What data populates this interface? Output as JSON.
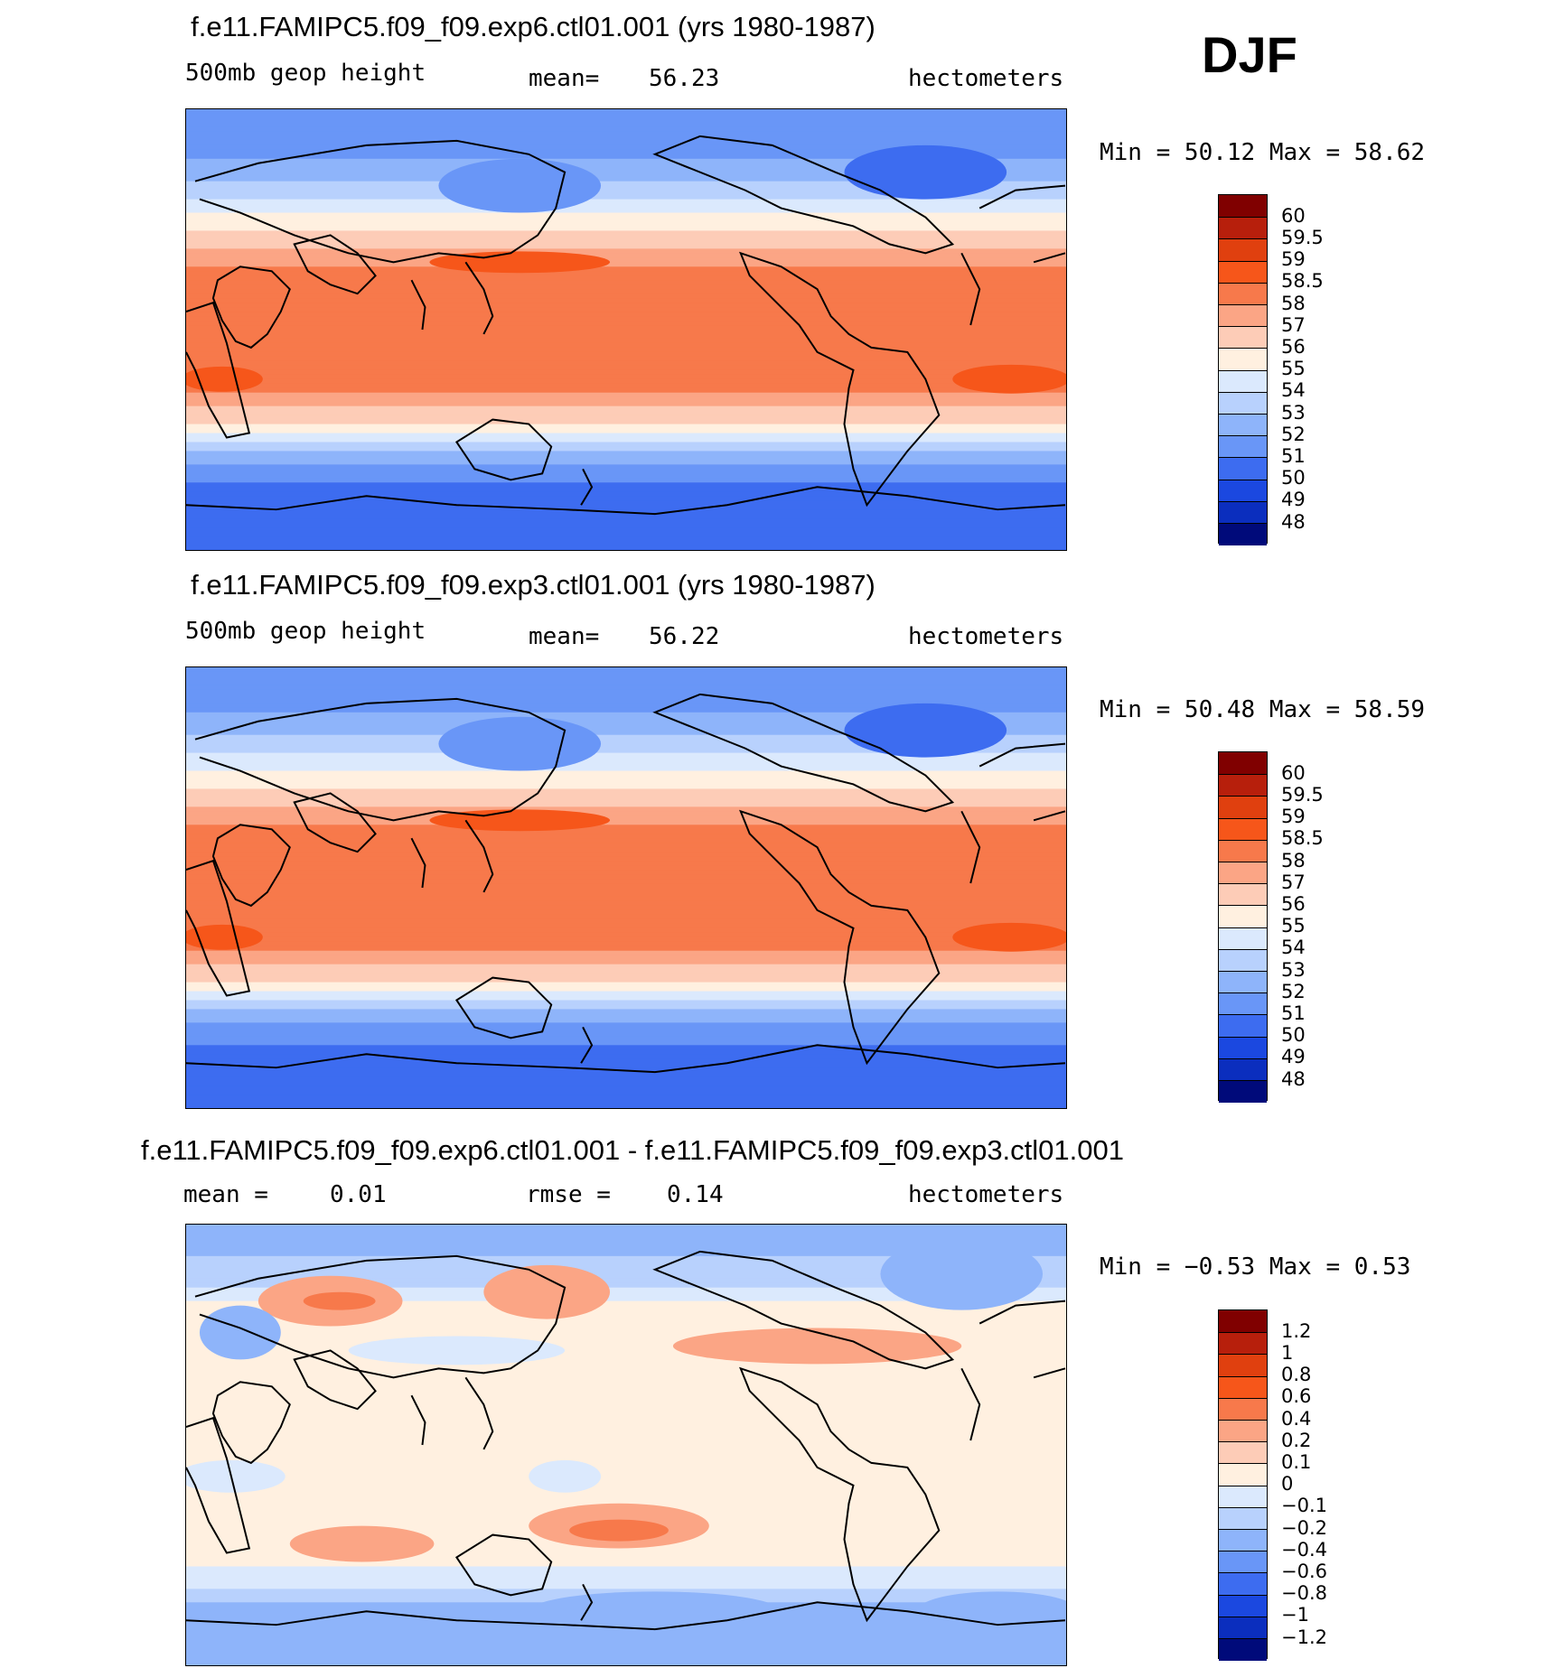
{
  "season_label": "DJF",
  "chart_data": [
    {
      "type": "heatmap",
      "title": "f.e11.FAMIPC5.f09_f09.exp6.ctl01.001 (yrs 1980-1987)",
      "variable": "500mb geop height",
      "mean_label": "mean=",
      "mean_value": "56.23",
      "units": "hectometers",
      "min_text": "Min =  50.12 Max =  58.62",
      "min": 50.12,
      "max": 58.62,
      "projection": "cylindrical equidistant, 180 centered, lat -90..90",
      "zonal_profile": {
        "lat": [
          90,
          75,
          65,
          55,
          48,
          40,
          33,
          25,
          15,
          0,
          -15,
          -25,
          -32,
          -38,
          -44,
          -50,
          -58,
          -68,
          -90
        ],
        "value": [
          51.0,
          51.5,
          52.5,
          53.8,
          55.0,
          56.0,
          57.0,
          58.2,
          58.4,
          58.3,
          58.3,
          58.0,
          57.0,
          56.0,
          54.5,
          53.0,
          51.5,
          50.5,
          50.3
        ]
      },
      "colorbar": {
        "labels": [
          "60",
          "59.5",
          "59",
          "58.5",
          "58",
          "57",
          "56",
          "55",
          "54",
          "53",
          "52",
          "51",
          "50",
          "49",
          "48"
        ],
        "colors": [
          "#800000",
          "#b71f0c",
          "#e0400f",
          "#f6561a",
          "#f7794b",
          "#fba585",
          "#fdccb7",
          "#fff0e0",
          "#dbe9fd",
          "#b8d1fd",
          "#8eb4fa",
          "#6996f7",
          "#3d6cf0",
          "#1b48e0",
          "#0b2ebe",
          "#000a7a"
        ]
      }
    },
    {
      "type": "heatmap",
      "title": "f.e11.FAMIPC5.f09_f09.exp3.ctl01.001 (yrs 1980-1987)",
      "variable": "500mb geop height",
      "mean_label": "mean=",
      "mean_value": "56.22",
      "units": "hectometers",
      "min_text": "Min =  50.48 Max =  58.59",
      "min": 50.48,
      "max": 58.59,
      "projection": "cylindrical equidistant, 180 centered, lat -90..90",
      "zonal_profile": {
        "lat": [
          90,
          75,
          65,
          55,
          48,
          40,
          33,
          25,
          15,
          0,
          -15,
          -25,
          -32,
          -38,
          -44,
          -50,
          -58,
          -68,
          -90
        ],
        "value": [
          51.1,
          51.6,
          52.6,
          53.9,
          55.1,
          56.1,
          57.1,
          58.2,
          58.4,
          58.3,
          58.3,
          58.0,
          57.0,
          56.0,
          54.5,
          53.0,
          51.6,
          50.7,
          50.5
        ]
      },
      "colorbar": {
        "labels": [
          "60",
          "59.5",
          "59",
          "58.5",
          "58",
          "57",
          "56",
          "55",
          "54",
          "53",
          "52",
          "51",
          "50",
          "49",
          "48"
        ],
        "colors": [
          "#800000",
          "#b71f0c",
          "#e0400f",
          "#f6561a",
          "#f7794b",
          "#fba585",
          "#fdccb7",
          "#fff0e0",
          "#dbe9fd",
          "#b8d1fd",
          "#8eb4fa",
          "#6996f7",
          "#3d6cf0",
          "#1b48e0",
          "#0b2ebe",
          "#000a7a"
        ]
      }
    },
    {
      "type": "heatmap",
      "title": "f.e11.FAMIPC5.f09_f09.exp6.ctl01.001 - f.e11.FAMIPC5.f09_f09.exp3.ctl01.001",
      "variable": "",
      "mean_label": "mean =",
      "mean_value": "0.01",
      "rmse_label": "rmse =",
      "rmse_value": "0.14",
      "units": "hectometers",
      "min_text": "Min = −0.53 Max =  0.53",
      "min": -0.53,
      "max": 0.53,
      "projection": "cylindrical equidistant, 180 centered, lat -90..90",
      "zonal_profile": {
        "lat": [
          90,
          78,
          65,
          55,
          45,
          30,
          10,
          -10,
          -30,
          -45,
          -55,
          -65,
          -90
        ],
        "value": [
          -0.3,
          -0.2,
          -0.1,
          0.05,
          0.02,
          0.01,
          0.01,
          0.01,
          0.02,
          0.05,
          -0.05,
          -0.2,
          -0.25
        ]
      },
      "colorbar": {
        "labels": [
          "1.2",
          "1",
          "0.8",
          "0.6",
          "0.4",
          "0.2",
          "0.1",
          "0",
          "−0.1",
          "−0.2",
          "−0.4",
          "−0.6",
          "−0.8",
          "−1",
          "−1.2"
        ],
        "colors": [
          "#800000",
          "#b71f0c",
          "#e0400f",
          "#f6561a",
          "#f7794b",
          "#fba585",
          "#fdccb7",
          "#fff0e0",
          "#dbe9fd",
          "#b8d1fd",
          "#8eb4fa",
          "#6996f7",
          "#3d6cf0",
          "#1b48e0",
          "#0b2ebe",
          "#000a7a"
        ]
      }
    }
  ]
}
